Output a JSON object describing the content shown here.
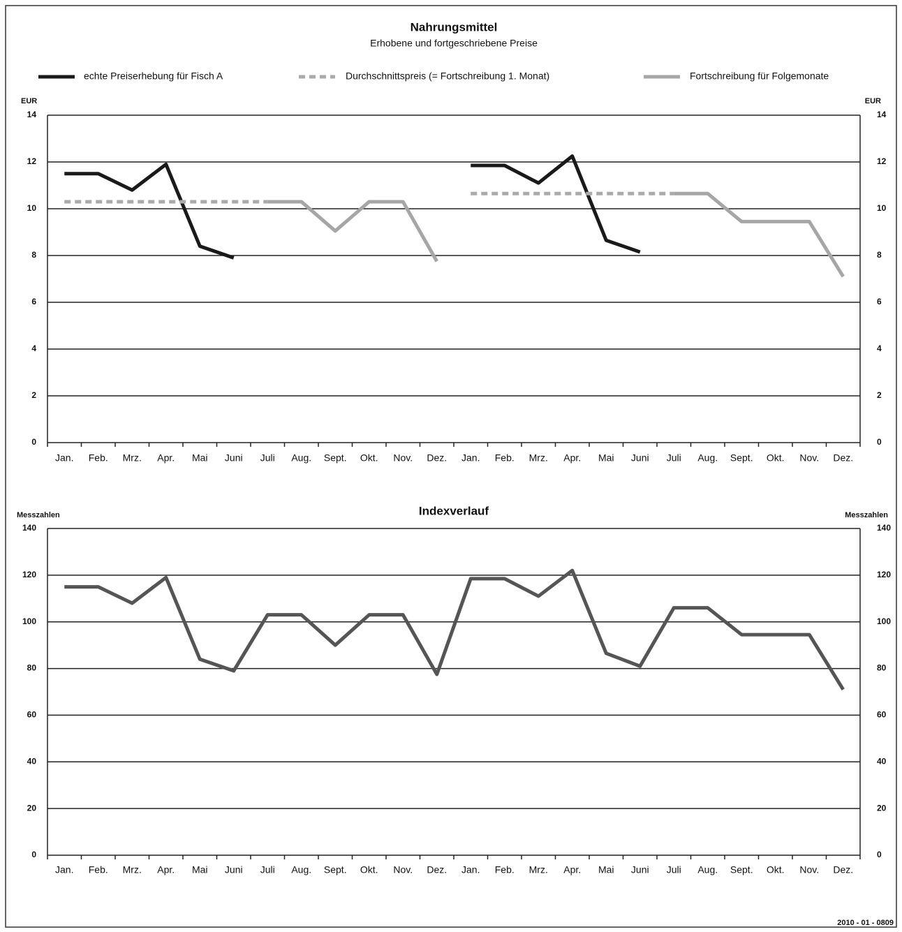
{
  "chart_data": [
    {
      "type": "line",
      "title": "Nahrungsmittel",
      "subtitle": "Erhobene und fortgeschriebene Preise",
      "y_axis_label": "EUR",
      "categories": [
        "Jan.",
        "Feb.",
        "Mrz.",
        "Apr.",
        "Mai",
        "Juni",
        "Juli",
        "Aug.",
        "Sept.",
        "Okt.",
        "Nov.",
        "Dez.",
        "Jan.",
        "Feb.",
        "Mrz.",
        "Apr.",
        "Mai",
        "Juni",
        "Juli",
        "Aug.",
        "Sept.",
        "Okt.",
        "Nov.",
        "Dez."
      ],
      "series": [
        {
          "name": "echte Preiserhebung für Fisch A",
          "color": "#1a1a1a",
          "style": "solid",
          "values": [
            11.5,
            11.5,
            10.8,
            11.9,
            8.4,
            7.9,
            null,
            null,
            null,
            null,
            null,
            null,
            11.85,
            11.85,
            11.1,
            12.25,
            8.65,
            8.15,
            null,
            null,
            null,
            null,
            null,
            null
          ]
        },
        {
          "name": "Durchschnittspreis (= Fortschreibung 1.  Monat)",
          "color": "#aaaaaa",
          "style": "dashed",
          "values": [
            10.3,
            10.3,
            10.3,
            10.3,
            10.3,
            10.3,
            10.3,
            null,
            null,
            null,
            null,
            null,
            10.65,
            10.65,
            10.65,
            10.65,
            10.65,
            10.65,
            10.65,
            null,
            null,
            null,
            null,
            null
          ]
        },
        {
          "name": "Fortschreibung für Folgemonate",
          "color": "#a6a6a6",
          "style": "solid",
          "values": [
            null,
            null,
            null,
            null,
            null,
            null,
            10.3,
            10.3,
            9.05,
            10.3,
            10.3,
            7.75,
            null,
            null,
            null,
            null,
            null,
            null,
            10.65,
            10.65,
            9.45,
            9.45,
            9.45,
            7.1
          ]
        }
      ],
      "ylim": [
        0,
        14
      ],
      "yticks": [
        0,
        2,
        4,
        6,
        8,
        10,
        12,
        14
      ],
      "grid": true
    },
    {
      "type": "line",
      "title": "Indexverlauf",
      "y_axis_label": "Messzahlen",
      "categories": [
        "Jan.",
        "Feb.",
        "Mrz.",
        "Apr.",
        "Mai",
        "Juni",
        "Juli",
        "Aug.",
        "Sept.",
        "Okt.",
        "Nov.",
        "Dez.",
        "Jan.",
        "Feb.",
        "Mrz.",
        "Apr.",
        "Mai",
        "Juni",
        "Juli",
        "Aug.",
        "Sept.",
        "Okt.",
        "Nov.",
        "Dez."
      ],
      "series": [
        {
          "color": "#555555",
          "style": "solid",
          "values": [
            115,
            115,
            108,
            119,
            84,
            79,
            103,
            103,
            90,
            103,
            103,
            77.5,
            118.5,
            118.5,
            111,
            122,
            86.5,
            81,
            106,
            106,
            94.5,
            94.5,
            94.5,
            71
          ]
        }
      ],
      "ylim": [
        0,
        140
      ],
      "yticks": [
        0,
        20,
        40,
        60,
        80,
        100,
        120,
        140
      ],
      "grid": true
    }
  ],
  "footer": "2010 - 01 - 0809"
}
